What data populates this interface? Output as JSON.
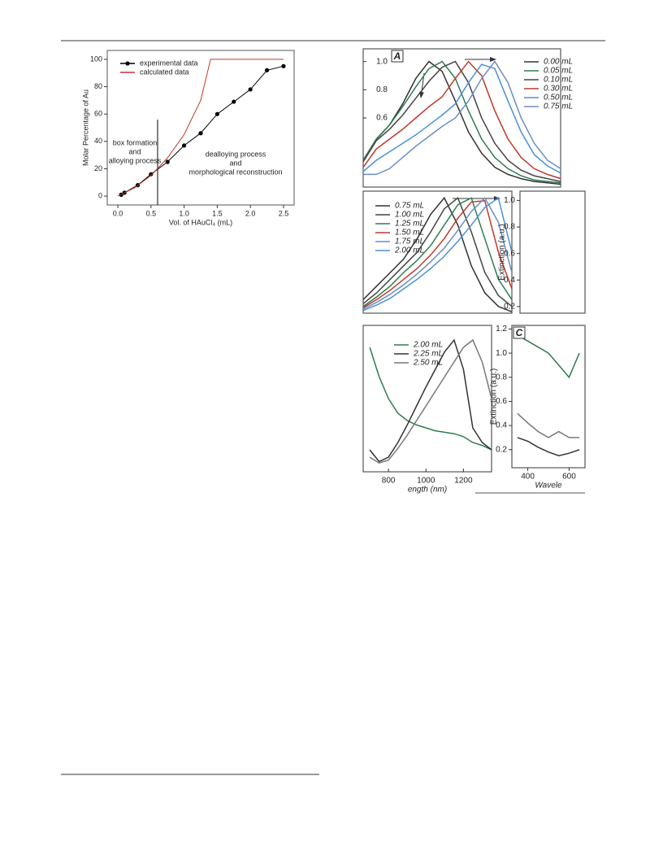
{
  "chart_data": [
    {
      "type": "line",
      "xlabel": "Vol. of HAuCl₄  (mL)",
      "ylabel": "Molar Percentage of Au",
      "xlim": [
        -0.16,
        2.66
      ],
      "ylim": [
        -6.5,
        106.5
      ],
      "xticks": [
        {
          "value": 0,
          "label": "0.0"
        },
        0.5,
        {
          "value": 1,
          "label": "1.0"
        },
        1.5,
        {
          "value": 2,
          "label": "2.0"
        },
        2.5
      ],
      "yticks": [
        0,
        20,
        40,
        60,
        80,
        100
      ],
      "divider_x": 0.6,
      "annotations": [
        [
          "box formation",
          "and",
          "alloying process"
        ],
        [
          "dealloying process",
          "and",
          "morphological reconstruction"
        ]
      ],
      "series": [
        {
          "name": "experimental data",
          "color": "#000000",
          "marker": "circle",
          "x": [
            0.05,
            0.1,
            0.3,
            0.5,
            0.75,
            1.0,
            1.25,
            1.5,
            1.75,
            2.0,
            2.25,
            2.5
          ],
          "values": [
            1,
            2.5,
            8,
            16,
            25,
            37,
            46,
            60,
            69,
            78,
            92,
            95
          ]
        },
        {
          "name": "calculated data",
          "color": "#c0392b",
          "x": [
            0,
            0.25,
            0.5,
            0.75,
            1.0,
            1.25,
            1.4,
            2.5
          ],
          "values": [
            0,
            6,
            15,
            28,
            45,
            70,
            100,
            100
          ]
        }
      ]
    },
    {
      "type": "line",
      "label": "A",
      "xlim": [
        650,
        1400
      ],
      "ylim": [
        0.11,
        1.09
      ],
      "yticks": [
        0.6,
        0.8,
        {
          "value": 1,
          "label": "1.0"
        }
      ],
      "x": [
        650,
        700,
        750,
        800,
        850,
        900,
        950,
        1000,
        1050,
        1100,
        1150,
        1200,
        1250,
        1300,
        1350,
        1400
      ],
      "series": [
        {
          "name": "0.00 mL",
          "color": "#333333",
          "values": [
            0.3,
            0.45,
            0.55,
            0.7,
            0.88,
            1.0,
            0.93,
            0.72,
            0.5,
            0.35,
            0.25,
            0.2,
            0.17,
            0.15,
            0.14,
            0.13
          ]
        },
        {
          "name": "0.05 mL",
          "color": "#2e7d4f",
          "values": [
            0.3,
            0.45,
            0.55,
            0.68,
            0.82,
            0.95,
            1.0,
            0.88,
            0.65,
            0.45,
            0.32,
            0.24,
            0.19,
            0.16,
            0.15,
            0.14
          ]
        },
        {
          "name": "0.10 mL",
          "color": "#444444",
          "values": [
            0.29,
            0.44,
            0.52,
            0.62,
            0.74,
            0.86,
            0.96,
            1.0,
            0.85,
            0.6,
            0.42,
            0.3,
            0.23,
            0.19,
            0.17,
            0.15
          ]
        },
        {
          "name": "0.30 mL",
          "color": "#c0392b",
          "values": [
            0.25,
            0.38,
            0.45,
            0.52,
            0.6,
            0.68,
            0.75,
            0.88,
            1.0,
            0.9,
            0.65,
            0.45,
            0.32,
            0.24,
            0.2,
            0.17
          ]
        },
        {
          "name": "0.50 mL",
          "color": "#4a90d9",
          "values": [
            0.22,
            0.3,
            0.36,
            0.42,
            0.48,
            0.55,
            0.62,
            0.7,
            0.85,
            0.98,
            0.95,
            0.72,
            0.5,
            0.34,
            0.26,
            0.21
          ]
        },
        {
          "name": "0.75 mL",
          "color": "#6a8fc0",
          "values": [
            0.2,
            0.2,
            0.24,
            0.32,
            0.4,
            0.47,
            0.54,
            0.6,
            0.72,
            0.88,
            1.0,
            0.85,
            0.6,
            0.42,
            0.3,
            0.24
          ]
        }
      ]
    },
    {
      "type": "line",
      "xlim": [
        650,
        1200
      ],
      "ylim": [
        0.15,
        1.05
      ],
      "x": [
        650,
        700,
        750,
        800,
        850,
        900,
        950,
        1000,
        1050,
        1100,
        1150,
        1200
      ],
      "series": [
        {
          "name": "0.75 mL",
          "color": "#333333",
          "values": [
            0.25,
            0.35,
            0.45,
            0.55,
            0.7,
            0.88,
            1.0,
            0.8,
            0.5,
            0.3,
            0.2,
            0.16
          ]
        },
        {
          "name": "1.00 mL",
          "color": "#444444",
          "values": [
            0.22,
            0.3,
            0.4,
            0.5,
            0.6,
            0.75,
            0.92,
            1.0,
            0.75,
            0.45,
            0.28,
            0.2
          ]
        },
        {
          "name": "1.25 mL",
          "color": "#2e7d4f",
          "values": [
            0.2,
            0.27,
            0.35,
            0.45,
            0.54,
            0.65,
            0.8,
            0.95,
            1.0,
            0.7,
            0.4,
            0.25
          ]
        },
        {
          "name": "1.50 mL",
          "color": "#c0392b",
          "values": [
            0.19,
            0.25,
            0.32,
            0.4,
            0.48,
            0.58,
            0.7,
            0.85,
            0.97,
            0.98,
            0.6,
            0.33
          ]
        },
        {
          "name": "1.75 mL",
          "color": "#6a8fc0",
          "values": [
            0.18,
            0.23,
            0.29,
            0.36,
            0.44,
            0.53,
            0.63,
            0.76,
            0.9,
            1.0,
            0.82,
            0.45
          ]
        },
        {
          "name": "2.00 mL",
          "color": "#4a90d9",
          "values": [
            0.17,
            0.21,
            0.26,
            0.33,
            0.4,
            0.48,
            0.57,
            0.68,
            0.8,
            0.93,
            1.0,
            0.6
          ]
        }
      ]
    },
    {
      "type": "line",
      "xlabel": "ength (nm)",
      "xlim": [
        665,
        1350
      ],
      "ylim": [
        0.1,
        1.1
      ],
      "xticks": [
        800,
        1000,
        1200
      ],
      "x": [
        700,
        750,
        800,
        850,
        900,
        950,
        1000,
        1050,
        1100,
        1150,
        1200,
        1250,
        1300,
        1350
      ],
      "series": [
        {
          "name": "2.00 mL",
          "color": "#2e7d4f",
          "values": [
            0.95,
            0.75,
            0.6,
            0.5,
            0.45,
            0.42,
            0.4,
            0.38,
            0.37,
            0.36,
            0.34,
            0.3,
            0.28,
            0.25
          ]
        },
        {
          "name": "2.25 mL",
          "color": "#333333",
          "values": [
            0.25,
            0.17,
            0.2,
            0.3,
            0.42,
            0.55,
            0.68,
            0.8,
            0.92,
            1.0,
            0.8,
            0.4,
            0.3,
            0.25
          ]
        },
        {
          "name": "2.50 mL",
          "color": "#777777",
          "values": [
            0.2,
            0.16,
            0.18,
            0.26,
            0.35,
            0.45,
            0.55,
            0.65,
            0.75,
            0.85,
            0.95,
            1.0,
            0.85,
            0.6
          ]
        }
      ]
    },
    {
      "type": "line",
      "label": "C",
      "xlabel": "Wavele",
      "ylabel": "Extinction (a.u.)",
      "xlim": [
        323,
        677
      ],
      "ylim": [
        0.05,
        1.23
      ],
      "xticks": [
        400,
        600
      ],
      "yticks": [
        0.2,
        0.4,
        0.6,
        0.8,
        {
          "value": 1,
          "label": "1.0"
        },
        1.2
      ],
      "x": [
        350,
        400,
        450,
        500,
        550,
        600,
        650
      ],
      "series": [
        {
          "color": "#2e7d4f",
          "values": [
            1.15,
            1.1,
            1.05,
            1.0,
            0.9,
            0.8,
            1.0
          ]
        },
        {
          "color": "#777777",
          "values": [
            0.5,
            0.42,
            0.35,
            0.3,
            0.35,
            0.3,
            0.3
          ]
        },
        {
          "color": "#333333",
          "values": [
            0.3,
            0.27,
            0.22,
            0.18,
            0.15,
            0.17,
            0.2
          ]
        }
      ]
    },
    {
      "type": "line",
      "ylabel": "Extinction (a.u.)",
      "xlim": [
        300,
        700
      ],
      "ylim": [
        0.15,
        1.07
      ],
      "yticks": [
        0.2,
        0.4,
        0.6,
        0.8,
        {
          "value": 1,
          "label": "1.0"
        }
      ],
      "series": []
    }
  ]
}
